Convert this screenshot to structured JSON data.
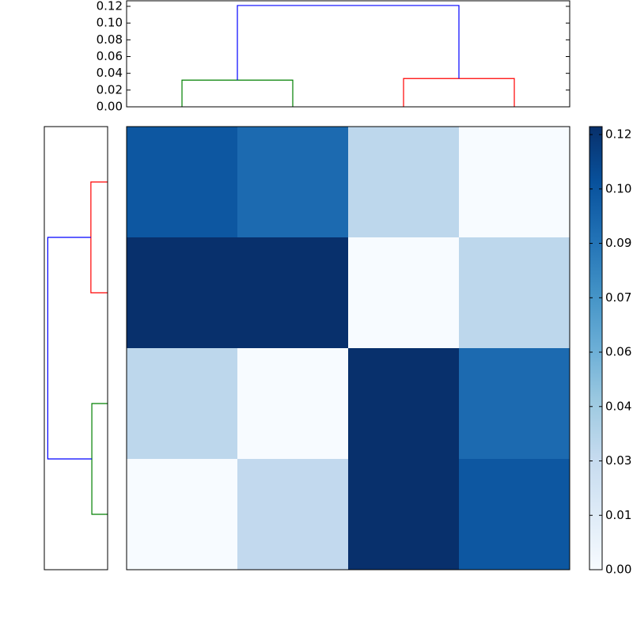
{
  "chart_data": [
    {
      "type": "dendrogram",
      "orientation": "top",
      "leaves": 4,
      "links": [
        {
          "children": [
            0,
            1
          ],
          "height": 0.0319,
          "color": "#008000"
        },
        {
          "children": [
            2,
            3
          ],
          "height": 0.0338,
          "color": "#ff0000"
        },
        {
          "children": [
            4,
            5
          ],
          "height": 0.121,
          "color": "#0000ff"
        }
      ],
      "ylim": [
        0,
        0.1266
      ],
      "yticks": [
        {
          "value": 0,
          "label": "0.00"
        },
        {
          "value": 0.02,
          "label": "0.02"
        },
        {
          "value": 0.04,
          "label": "0.04"
        },
        {
          "value": 0.06,
          "label": "0.06"
        },
        {
          "value": 0.08,
          "label": "0.08"
        },
        {
          "value": 0.1,
          "label": "0.10"
        },
        {
          "value": 0.12,
          "label": "0.12"
        }
      ]
    },
    {
      "type": "dendrogram",
      "orientation": "left",
      "leaves": 4,
      "links": [
        {
          "children": [
            0,
            1
          ],
          "height": 0.0338,
          "color": "#ff0000"
        },
        {
          "children": [
            2,
            3
          ],
          "height": 0.0319,
          "color": "#008000"
        },
        {
          "children": [
            4,
            5
          ],
          "height": 0.121,
          "color": "#0000ff"
        }
      ],
      "xlim": [
        0.128,
        0
      ]
    },
    {
      "type": "heatmap",
      "colormap": "Blues",
      "values": [
        [
          0.104,
          0.095,
          0.034,
          0.0
        ],
        [
          0.122,
          0.122,
          0.0,
          0.034
        ],
        [
          0.034,
          0.0,
          0.122,
          0.095
        ],
        [
          0.0,
          0.032,
          0.122,
          0.104
        ]
      ],
      "clim": [
        0,
        0.1222
      ],
      "cticks": [
        {
          "value": 0,
          "label": "0.00"
        },
        {
          "value": 0.015,
          "label": "0.01"
        },
        {
          "value": 0.03,
          "label": "0.03"
        },
        {
          "value": 0.045,
          "label": "0.04"
        },
        {
          "value": 0.06,
          "label": "0.06"
        },
        {
          "value": 0.075,
          "label": "0.07"
        },
        {
          "value": 0.09,
          "label": "0.09"
        },
        {
          "value": 0.105,
          "label": "0.10"
        },
        {
          "value": 0.12,
          "label": "0.12"
        }
      ]
    }
  ]
}
